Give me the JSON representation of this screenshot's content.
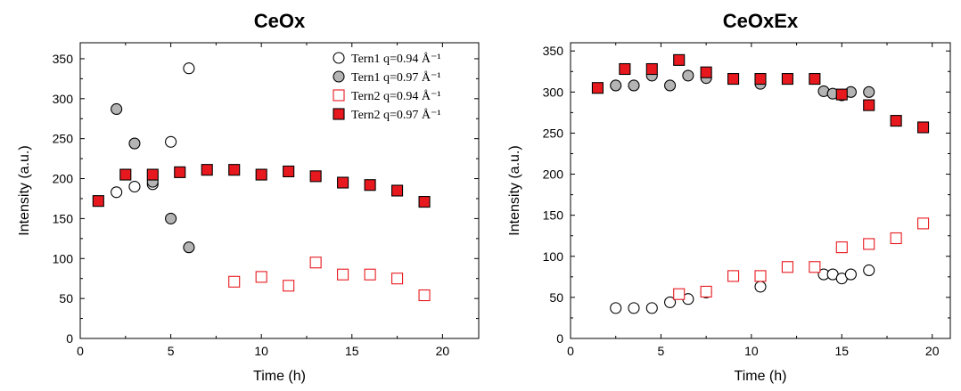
{
  "colors": {
    "open_circle": "#000000",
    "gray_circle": "#b4b4b4",
    "open_square": "#e8191e",
    "red_square": "#e8191e"
  },
  "chart_data": [
    {
      "type": "scatter",
      "title": "CeOx",
      "xlabel": "Time (h)",
      "ylabel": "Intensity (a.u.)",
      "xlim": [
        0,
        22
      ],
      "ylim": [
        0,
        370
      ],
      "xticks": [
        "0",
        "5",
        "10",
        "15",
        "20"
      ],
      "yticks": [
        "0",
        "50",
        "100",
        "150",
        "200",
        "250",
        "300",
        "350"
      ],
      "legend_position": "top-right",
      "series": [
        {
          "name": "Tern1 q=0.94 Å⁻¹",
          "marker": "circle-open",
          "x": [
            2,
            3,
            4,
            5,
            6
          ],
          "y": [
            183,
            190,
            193,
            246,
            338
          ]
        },
        {
          "name": "Tern1 q=0.97 Å⁻¹",
          "marker": "circle-filled",
          "x": [
            2,
            3,
            4,
            5,
            6
          ],
          "y": [
            287,
            244,
            196,
            150,
            114
          ]
        },
        {
          "name": "Tern2 q=0.94 Å⁻¹",
          "marker": "square-open",
          "x": [
            8.5,
            10,
            11.5,
            13,
            14.5,
            16,
            17.5,
            19
          ],
          "y": [
            71,
            77,
            66,
            95,
            80,
            80,
            75,
            54
          ]
        },
        {
          "name": "Tern2 q=0.97 Å⁻¹",
          "marker": "square-filled",
          "x": [
            1,
            2.5,
            4,
            5.5,
            7,
            8.5,
            10,
            11.5,
            13,
            14.5,
            16,
            17.5,
            19
          ],
          "y": [
            172,
            205,
            205,
            208,
            211,
            211,
            205,
            209,
            203,
            195,
            192,
            185,
            171
          ]
        }
      ]
    },
    {
      "type": "scatter",
      "title": "CeOxEx",
      "xlabel": "Time (h)",
      "ylabel": "Intensity (a.u.)",
      "xlim": [
        0,
        21
      ],
      "ylim": [
        0,
        360
      ],
      "xticks": [
        "0",
        "5",
        "10",
        "15",
        "20"
      ],
      "yticks": [
        "0",
        "50",
        "100",
        "150",
        "200",
        "250",
        "300",
        "350"
      ],
      "series": [
        {
          "marker": "circle-open",
          "x": [
            2.5,
            3.5,
            4.5,
            5.5,
            6.5,
            7.5,
            10.5,
            14,
            14.5,
            15,
            15.5,
            16.5
          ],
          "y": [
            37,
            37,
            37,
            44,
            48,
            56,
            63,
            78,
            78,
            73,
            78,
            83
          ]
        },
        {
          "marker": "circle-filled",
          "x": [
            2.5,
            3.5,
            4.5,
            5.5,
            6.5,
            7.5,
            10.5,
            14,
            14.5,
            15,
            15.5,
            16.5
          ],
          "y": [
            308,
            308,
            320,
            308,
            320,
            317,
            310,
            301,
            298,
            296,
            300,
            300
          ]
        },
        {
          "marker": "square-open",
          "x": [
            6,
            7.5,
            9,
            10.5,
            12,
            13.5,
            15,
            16.5,
            18,
            19.5
          ],
          "y": [
            54,
            57,
            76,
            76,
            87,
            87,
            111,
            115,
            122,
            140
          ]
        },
        {
          "marker": "square-filled",
          "x": [
            1.5,
            3,
            4.5,
            6,
            7.5,
            9,
            10.5,
            12,
            13.5,
            15,
            16.5,
            18,
            19.5
          ],
          "y": [
            305,
            328,
            328,
            339,
            324,
            316,
            316,
            316,
            316,
            297,
            284,
            265,
            257
          ]
        }
      ]
    }
  ]
}
